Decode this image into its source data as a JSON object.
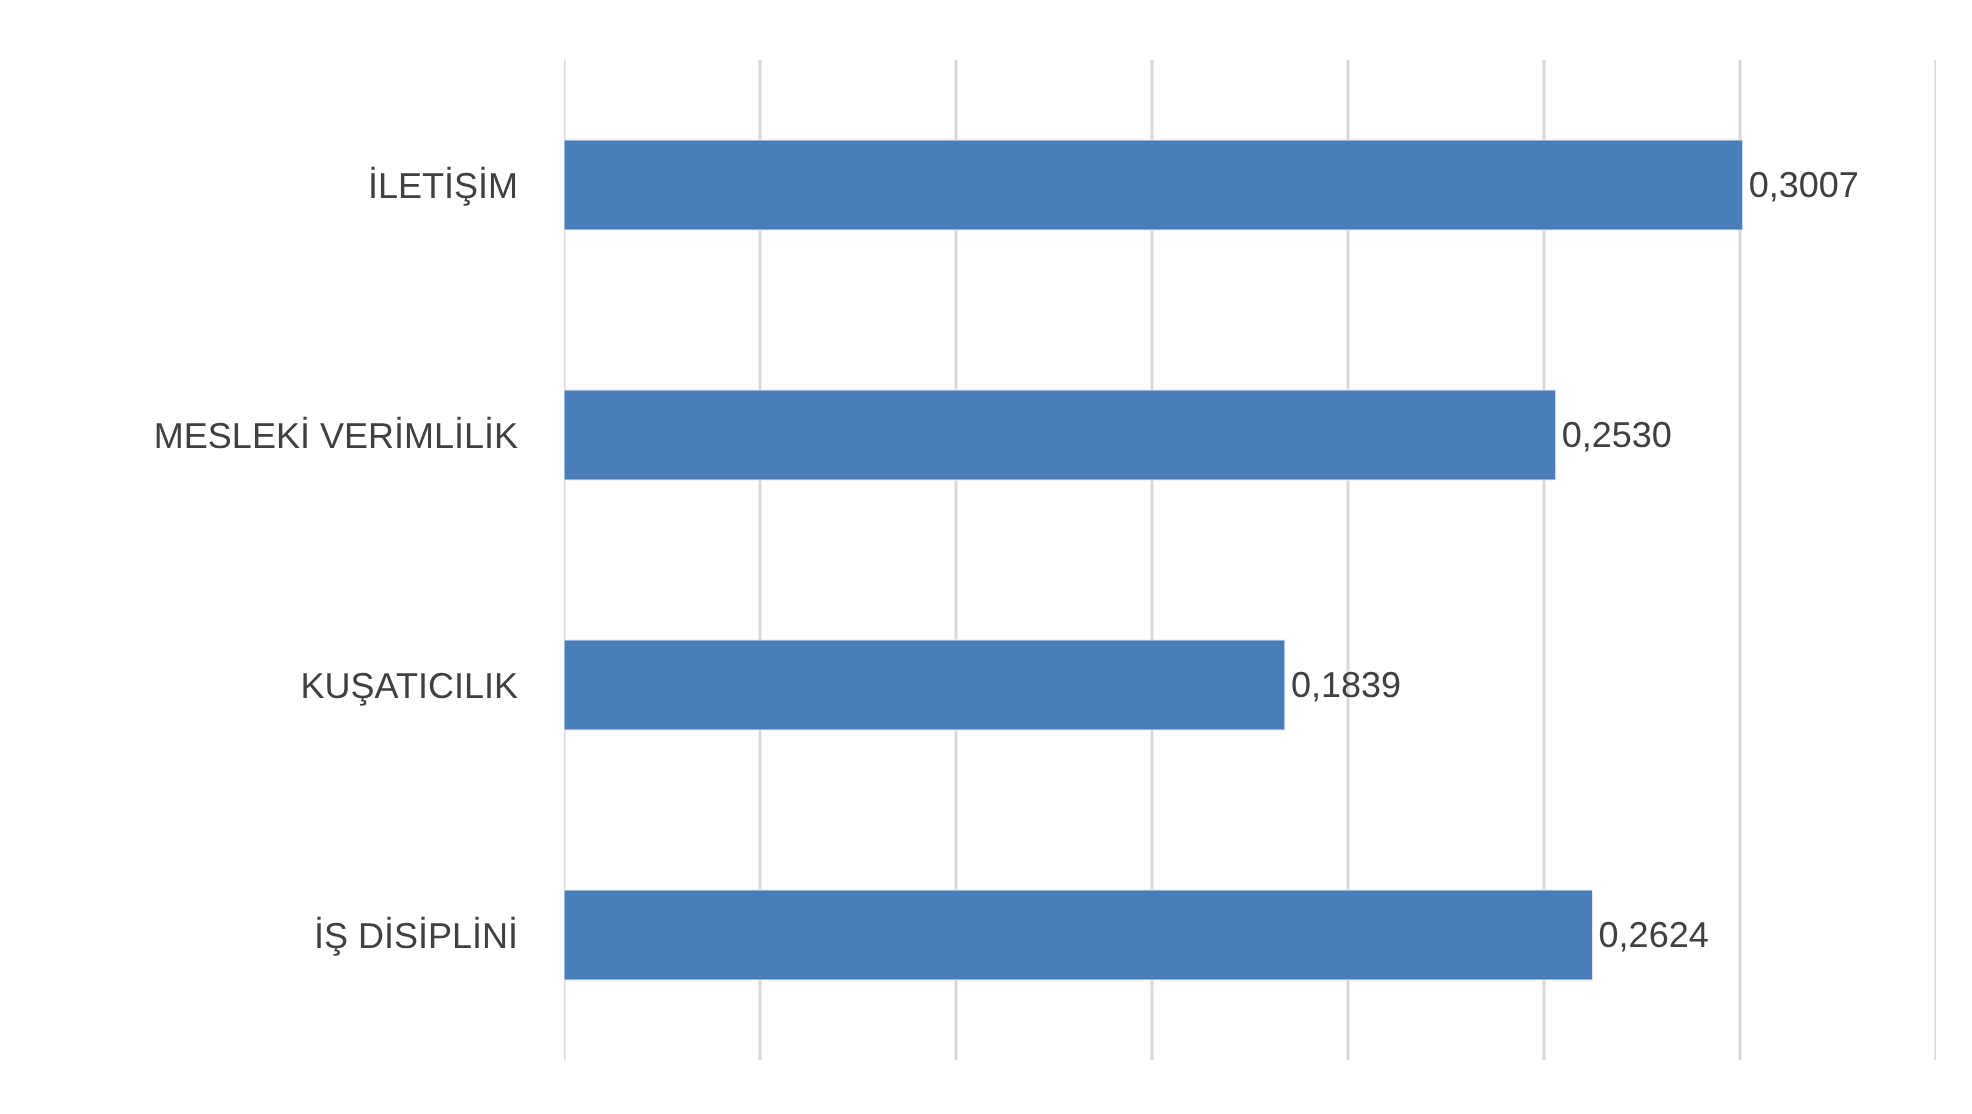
{
  "chart_data": {
    "type": "bar",
    "orientation": "horizontal",
    "categories": [
      "İLETİŞİM",
      "MESLEKİ VERİMLİLİK",
      "KUŞATICILIK",
      "İŞ DİSİPLİNİ"
    ],
    "values": [
      0.3007,
      0.253,
      0.1839,
      0.2624
    ],
    "value_labels": [
      "0,3007",
      "0,2530",
      "0,1839",
      "0,2624"
    ],
    "color": "#4a7ebb",
    "xlim": [
      0,
      0.35
    ],
    "xticks": [
      {
        "value": 0,
        "label": null
      },
      {
        "value": 0.05,
        "label": null
      },
      {
        "value": 0.1,
        "label": null
      },
      {
        "value": 0.15,
        "label": null
      },
      {
        "value": 0.2,
        "label": null
      },
      {
        "value": 0.25,
        "label": null
      },
      {
        "value": 0.3,
        "label": null
      },
      {
        "value": 0.35,
        "label": null
      }
    ],
    "grid": "x",
    "tick_labels": "y"
  }
}
